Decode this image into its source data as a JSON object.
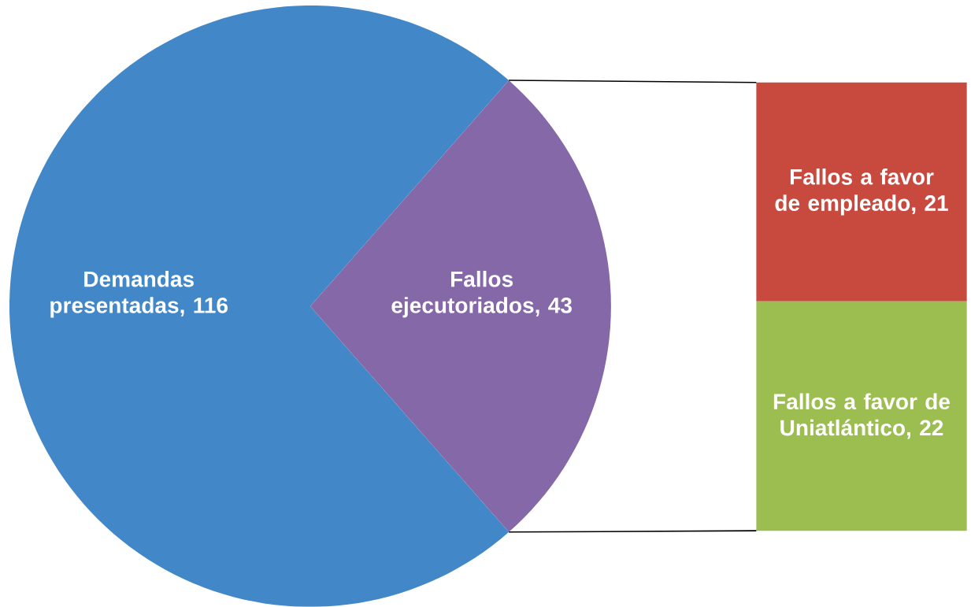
{
  "chart_data": [
    {
      "type": "pie",
      "categories": [
        "Demandas presentadas",
        "Fallos ejecutoriados"
      ],
      "values": [
        116,
        43
      ],
      "value_labels": [
        ", 116",
        ", 43"
      ],
      "colors": [
        "#4287c8",
        "#8568a8"
      ]
    },
    {
      "type": "bar",
      "stacked": true,
      "categories": [
        null
      ],
      "series": [
        {
          "name": "Fallos a favor de Uniatlántico",
          "color": "#9cbd50",
          "values": [
            22
          ],
          "value_labels": [
            ", 22"
          ]
        },
        {
          "name": "Fallos a favor de empleado",
          "color": "#c84a3f",
          "values": [
            21
          ],
          "value_labels": [
            ", 21"
          ]
        }
      ]
    }
  ]
}
